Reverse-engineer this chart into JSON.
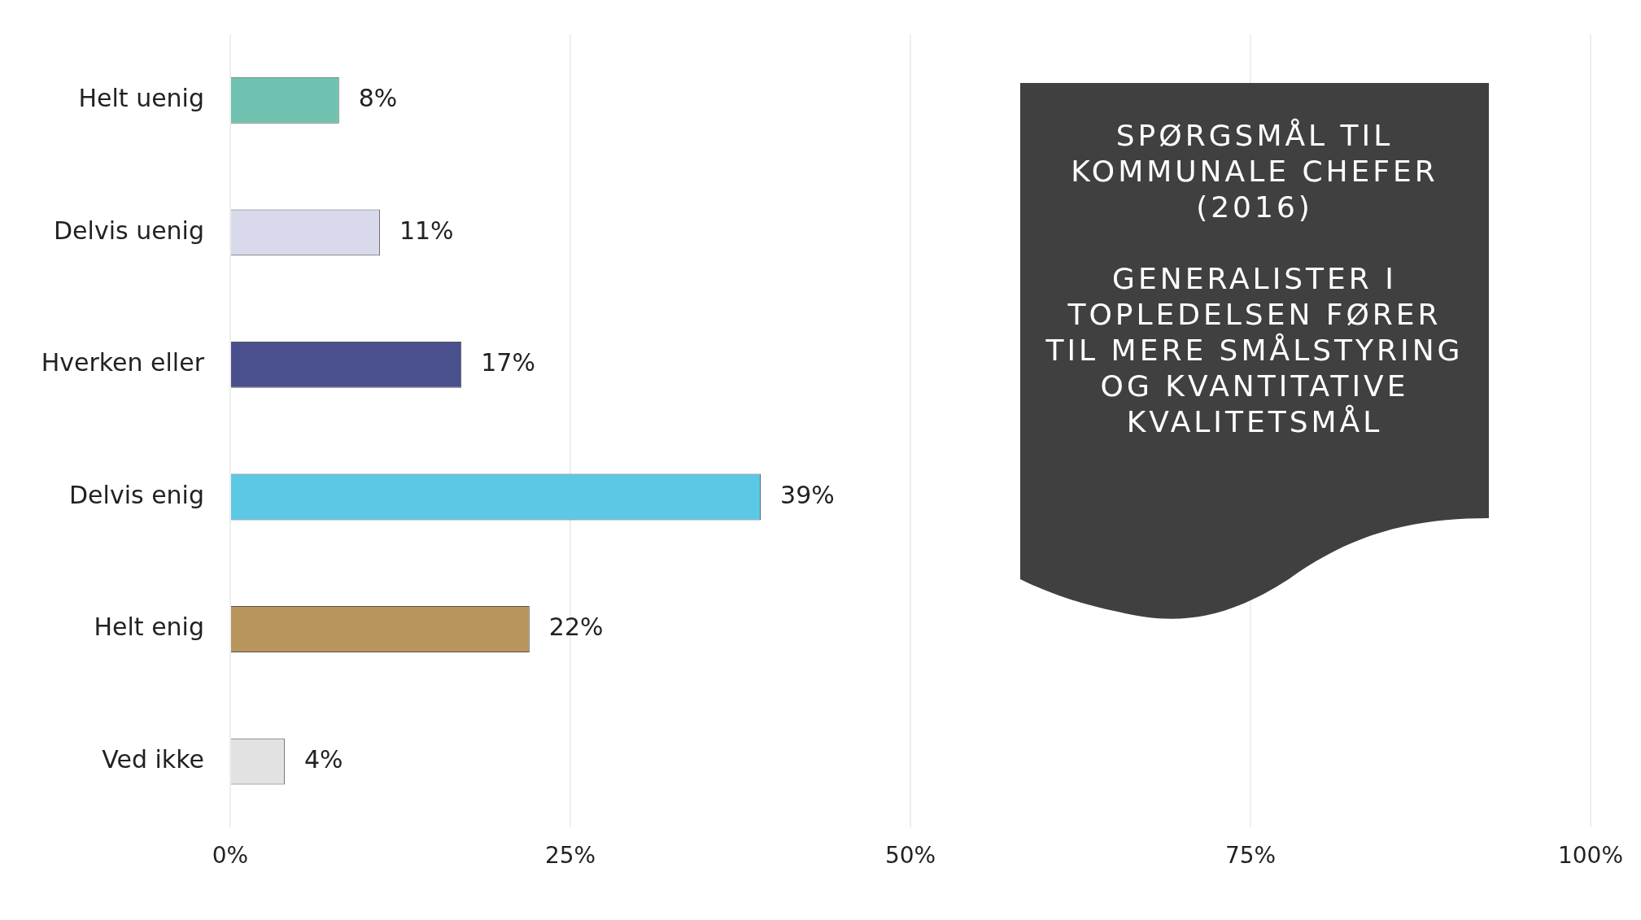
{
  "chart_data": {
    "type": "bar",
    "orientation": "horizontal",
    "title": "SPØRGSMÅL TIL KOMMUNALE CHEFER (2016)",
    "subtitle": "GENERALISTER I TOPLEDELSEN FØRER TIL MERE SMÅLSTYRING OG KVANTITATIVE KVALITETSMÅL",
    "categories": [
      "Helt uenig",
      "Delvis uenig",
      "Hverken eller",
      "Delvis enig",
      "Helt enig",
      "Ved ikke"
    ],
    "values": [
      8,
      11,
      17,
      39,
      22,
      4
    ],
    "colors": [
      "#6fc2b0",
      "#d9d9ec",
      "#4a4f8e",
      "#5bc8e6",
      "#b8955a",
      "#e2e2e2"
    ],
    "value_labels": [
      "8%",
      "11%",
      "17%",
      "39%",
      "22%",
      "4%"
    ],
    "xlim": [
      0,
      100
    ],
    "xticks": [
      {
        "value": 0,
        "label": "0%"
      },
      {
        "value": 25,
        "label": "25%"
      },
      {
        "value": 50,
        "label": "50%"
      },
      {
        "value": 75,
        "label": "75%"
      },
      {
        "value": 100,
        "label": "100%"
      }
    ],
    "grid": "x"
  }
}
